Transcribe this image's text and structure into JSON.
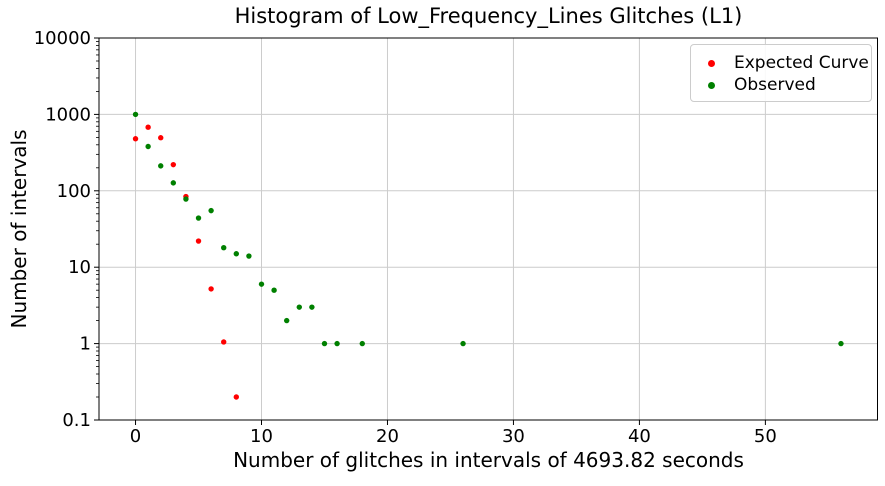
{
  "chart_data": {
    "type": "scatter",
    "title": "Histogram of Low_Frequency_Lines Glitches (L1)",
    "xlabel": "Number of glitches in intervals of 4693.82 seconds",
    "ylabel": "Number of intervals",
    "y_scale": "log",
    "grid": true,
    "xlim": [
      -2.9,
      58.9
    ],
    "ylim": [
      0.1,
      10000
    ],
    "x_ticks": [
      0,
      10,
      20,
      30,
      40,
      50
    ],
    "x_tick_labels": [
      "0",
      "10",
      "20",
      "30",
      "40",
      "50"
    ],
    "y_ticks": [
      10000,
      1000,
      100,
      10,
      1,
      0.1
    ],
    "y_tick_labels": [
      "10000",
      "1000",
      "100",
      "10",
      "1",
      "0.1"
    ],
    "legend": {
      "position": "upper right",
      "entries": [
        {
          "label": "Expected Curve",
          "color": "#ff0000"
        },
        {
          "label": "Observed",
          "color": "#008000"
        }
      ]
    },
    "series": [
      {
        "name": "Expected Curve",
        "color": "#ff0000",
        "marker": "circle",
        "x": [
          0,
          1,
          2,
          3,
          4,
          5,
          6,
          7,
          8
        ],
        "y": [
          480,
          680,
          495,
          220,
          84,
          22,
          5.2,
          1.05,
          0.2
        ]
      },
      {
        "name": "Observed",
        "color": "#008000",
        "marker": "circle",
        "x": [
          0,
          1,
          2,
          3,
          4,
          5,
          6,
          7,
          8,
          9,
          10,
          11,
          12,
          13,
          14,
          15,
          16,
          18,
          26,
          56
        ],
        "y": [
          1000,
          380,
          212,
          127,
          78,
          44,
          55,
          18,
          15,
          14,
          6,
          5,
          2,
          3,
          3,
          1,
          1,
          1,
          1,
          1
        ]
      }
    ]
  },
  "colors": {
    "background": "#ffffff",
    "grid": "#cccccc",
    "axis": "#000000",
    "text": "#000000",
    "legend_border": "#cccccc"
  }
}
